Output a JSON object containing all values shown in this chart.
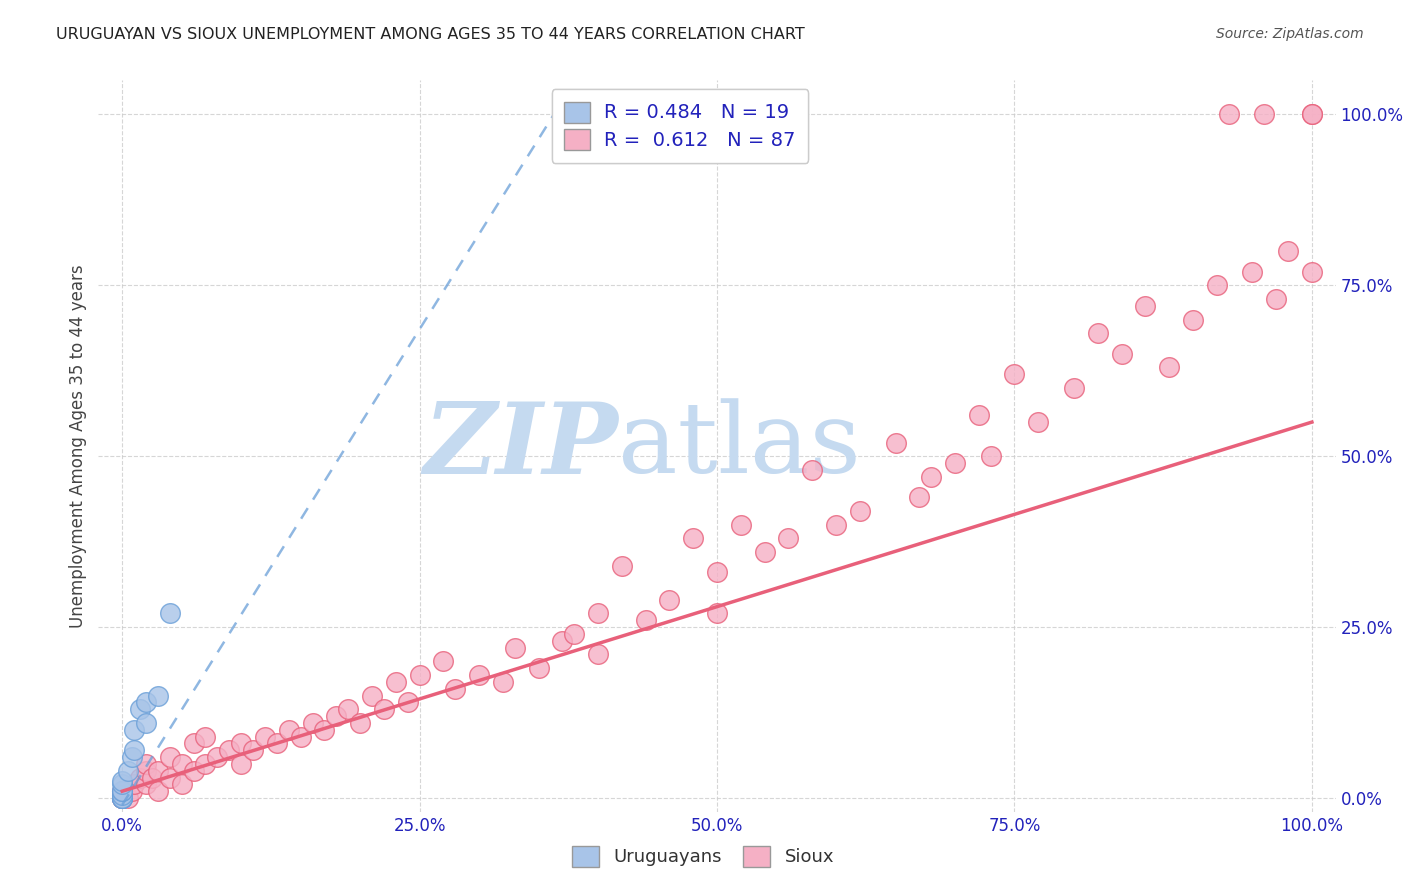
{
  "title": "URUGUAYAN VS SIOUX UNEMPLOYMENT AMONG AGES 35 TO 44 YEARS CORRELATION CHART",
  "source": "Source: ZipAtlas.com",
  "ylabel": "Unemployment Among Ages 35 to 44 years",
  "xlim": [
    -0.02,
    1.02
  ],
  "ylim": [
    -0.02,
    1.05
  ],
  "xtick_labels": [
    "0.0%",
    "25.0%",
    "50.0%",
    "75.0%",
    "100.0%"
  ],
  "xtick_positions": [
    0.0,
    0.25,
    0.5,
    0.75,
    1.0
  ],
  "ytick_labels": [
    "0.0%",
    "25.0%",
    "50.0%",
    "75.0%",
    "100.0%"
  ],
  "ytick_positions": [
    0.0,
    0.25,
    0.5,
    0.75,
    1.0
  ],
  "uruguayan_R": 0.484,
  "uruguayan_N": 19,
  "sioux_R": 0.612,
  "sioux_N": 87,
  "uruguayan_color": "#a8c4e8",
  "sioux_color": "#f5b0c5",
  "uruguayan_edge_color": "#6a9fd8",
  "sioux_edge_color": "#e8607a",
  "uruguayan_trend_color": "#6a9fd8",
  "sioux_trend_color": "#e8607a",
  "grid_color": "#cccccc",
  "background_color": "#ffffff",
  "watermark_zip": "ZIP",
  "watermark_atlas": "atlas",
  "watermark_color_zip": "#c5daf0",
  "watermark_color_atlas": "#c5daf0",
  "legend_label_color": "#2222bb",
  "uruguayan_x": [
    0.0,
    0.0,
    0.0,
    0.0,
    0.0,
    0.0,
    0.0,
    0.0,
    0.0,
    0.0,
    0.005,
    0.008,
    0.01,
    0.01,
    0.015,
    0.02,
    0.02,
    0.03,
    0.04
  ],
  "uruguayan_y": [
    0.0,
    0.0,
    0.0,
    0.0,
    0.0,
    0.005,
    0.01,
    0.01,
    0.02,
    0.025,
    0.04,
    0.06,
    0.07,
    0.1,
    0.13,
    0.11,
    0.14,
    0.15,
    0.27
  ],
  "sioux_x": [
    0.0,
    0.0,
    0.0,
    0.0,
    0.0,
    0.005,
    0.008,
    0.01,
    0.015,
    0.02,
    0.02,
    0.02,
    0.025,
    0.03,
    0.03,
    0.04,
    0.04,
    0.05,
    0.05,
    0.06,
    0.06,
    0.07,
    0.07,
    0.08,
    0.09,
    0.1,
    0.1,
    0.11,
    0.12,
    0.13,
    0.14,
    0.15,
    0.16,
    0.17,
    0.18,
    0.19,
    0.2,
    0.21,
    0.22,
    0.23,
    0.24,
    0.25,
    0.27,
    0.28,
    0.3,
    0.32,
    0.33,
    0.35,
    0.37,
    0.38,
    0.4,
    0.4,
    0.42,
    0.44,
    0.46,
    0.48,
    0.5,
    0.5,
    0.52,
    0.54,
    0.56,
    0.58,
    0.6,
    0.62,
    0.65,
    0.67,
    0.68,
    0.7,
    0.72,
    0.73,
    0.75,
    0.77,
    0.8,
    0.82,
    0.84,
    0.86,
    0.88,
    0.9,
    0.92,
    0.93,
    0.95,
    0.96,
    0.97,
    0.98,
    1.0,
    1.0,
    1.0
  ],
  "sioux_y": [
    0.0,
    0.0,
    0.0,
    0.005,
    0.01,
    0.0,
    0.01,
    0.02,
    0.03,
    0.02,
    0.04,
    0.05,
    0.03,
    0.01,
    0.04,
    0.03,
    0.06,
    0.02,
    0.05,
    0.04,
    0.08,
    0.05,
    0.09,
    0.06,
    0.07,
    0.05,
    0.08,
    0.07,
    0.09,
    0.08,
    0.1,
    0.09,
    0.11,
    0.1,
    0.12,
    0.13,
    0.11,
    0.15,
    0.13,
    0.17,
    0.14,
    0.18,
    0.2,
    0.16,
    0.18,
    0.17,
    0.22,
    0.19,
    0.23,
    0.24,
    0.21,
    0.27,
    0.34,
    0.26,
    0.29,
    0.38,
    0.27,
    0.33,
    0.4,
    0.36,
    0.38,
    0.48,
    0.4,
    0.42,
    0.52,
    0.44,
    0.47,
    0.49,
    0.56,
    0.5,
    0.62,
    0.55,
    0.6,
    0.68,
    0.65,
    0.72,
    0.63,
    0.7,
    0.75,
    1.0,
    0.77,
    1.0,
    0.73,
    0.8,
    0.77,
    1.0,
    1.0
  ],
  "sioux_trend_x": [
    0.0,
    1.0
  ],
  "sioux_trend_y": [
    0.01,
    0.55
  ],
  "uru_trend_x": [
    0.0,
    0.37
  ],
  "uru_trend_y": [
    -0.01,
    1.02
  ]
}
